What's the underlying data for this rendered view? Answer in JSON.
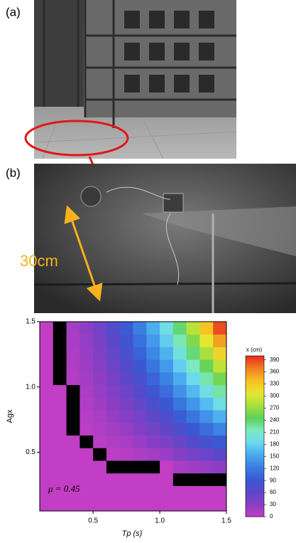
{
  "panels": [
    {
      "label": "(a)"
    },
    {
      "label": "(b)",
      "annotation": "30cm"
    }
  ],
  "chart_data": {
    "type": "heatmap",
    "xlabel": "Tp (s)",
    "ylabel": "Agx",
    "annotation": "μ = 0.45",
    "colorbar_label": "x (cm)",
    "xlim": [
      0.1,
      1.5
    ],
    "ylim": [
      0.05,
      1.5
    ],
    "xticks": [
      0.5,
      {
        "value": 1,
        "label": "1.0"
      },
      1.5
    ],
    "yticks": [
      0.5,
      {
        "value": 1,
        "label": "1.0"
      },
      1.5
    ],
    "zlim": [
      0,
      400
    ],
    "zticks": [
      0,
      30,
      60,
      90,
      120,
      150,
      180,
      210,
      240,
      270,
      300,
      330,
      360,
      390
    ],
    "colorscale": [
      "#c23ec4",
      "#8a3ec4",
      "#5c48c8",
      "#3a58d2",
      "#3a7ee2",
      "#48a8ee",
      "#6ad8f2",
      "#7eeac0",
      "#5cd05c",
      "#a6e03e",
      "#e6e632",
      "#f8c020",
      "#f08020",
      "#e82a20"
    ],
    "null_color": "#000000",
    "values": [
      [
        0,
        0,
        0,
        0,
        0,
        0,
        0,
        0,
        0,
        0,
        0,
        0,
        0,
        0
      ],
      [
        0,
        0,
        0,
        0,
        0,
        0,
        0,
        0,
        0,
        0,
        0,
        0,
        0,
        0
      ],
      [
        0,
        0,
        0,
        0,
        0,
        0,
        0,
        0,
        0,
        0,
        null,
        null,
        null,
        null
      ],
      [
        0,
        0,
        0,
        0,
        0,
        null,
        null,
        null,
        null,
        0,
        14,
        19,
        25,
        29
      ],
      [
        0,
        0,
        0,
        0,
        null,
        4,
        7,
        12,
        18,
        23,
        35,
        43,
        53,
        62
      ],
      [
        0,
        0,
        0,
        null,
        5,
        11,
        16,
        23,
        32,
        41,
        55,
        68,
        82,
        94
      ],
      [
        0,
        0,
        null,
        4,
        10,
        17,
        25,
        34,
        46,
        58,
        76,
        92,
        110,
        127
      ],
      [
        0,
        0,
        null,
        7,
        14,
        24,
        34,
        45,
        60,
        75,
        96,
        116,
        138,
        159
      ],
      [
        0,
        0,
        null,
        10,
        19,
        30,
        42,
        57,
        74,
        92,
        116,
        140,
        166,
        192
      ],
      [
        0,
        0,
        null,
        14,
        24,
        37,
        51,
        68,
        88,
        109,
        137,
        164,
        194,
        224
      ],
      [
        0,
        null,
        9,
        17,
        28,
        43,
        60,
        79,
        102,
        126,
        157,
        188,
        222,
        257
      ],
      [
        0,
        null,
        11,
        20,
        33,
        50,
        68,
        90,
        116,
        143,
        178,
        213,
        251,
        289
      ],
      [
        0,
        null,
        12,
        23,
        38,
        57,
        77,
        101,
        130,
        160,
        198,
        237,
        279,
        322
      ],
      [
        0,
        null,
        14,
        26,
        42,
        63,
        86,
        112,
        143,
        177,
        219,
        261,
        307,
        354
      ],
      [
        0,
        null,
        16,
        29,
        47,
        70,
        95,
        124,
        157,
        194,
        239,
        285,
        335,
        387
      ]
    ]
  }
}
